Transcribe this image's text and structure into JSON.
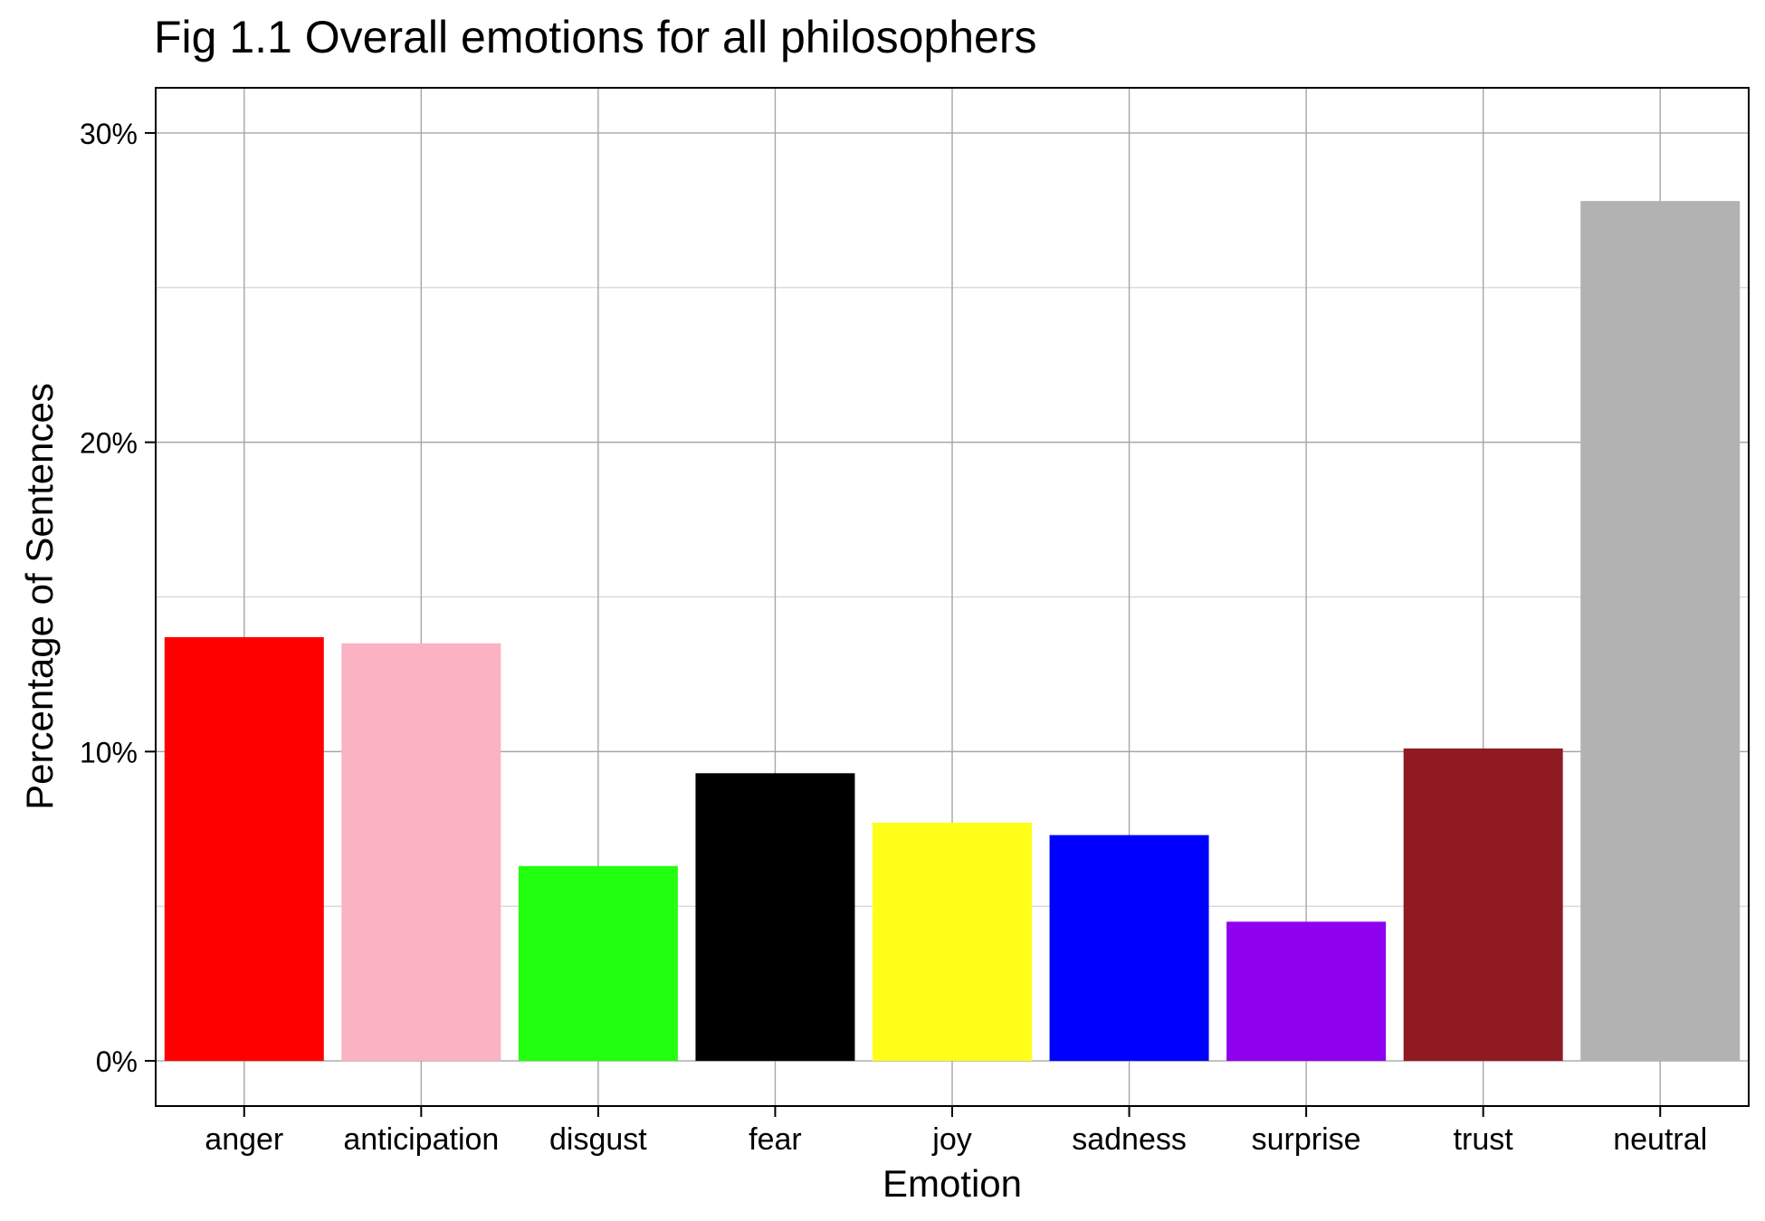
{
  "chart_data": {
    "type": "bar",
    "title": "Fig 1.1 Overall emotions for all philosophers",
    "xlabel": "Emotion",
    "ylabel": "Percentage of Sentences",
    "categories": [
      "anger",
      "anticipation",
      "disgust",
      "fear",
      "joy",
      "sadness",
      "surprise",
      "trust",
      "neutral"
    ],
    "values": [
      13.7,
      13.5,
      6.3,
      9.3,
      7.7,
      7.3,
      4.5,
      10.1,
      27.8
    ],
    "colors": [
      "#FF0000",
      "#FBB2C3",
      "#22FF0F",
      "#000000",
      "#FFFF19",
      "#0000FF",
      "#8E00EE",
      "#901A22",
      "#B2B2B2"
    ],
    "ylim": [
      -1.46,
      31.46
    ],
    "yticks": [
      0,
      10,
      20,
      30
    ],
    "ytick_labels": [
      "0%",
      "10%",
      "20%",
      "30%"
    ],
    "grid": true,
    "legend": "none"
  }
}
